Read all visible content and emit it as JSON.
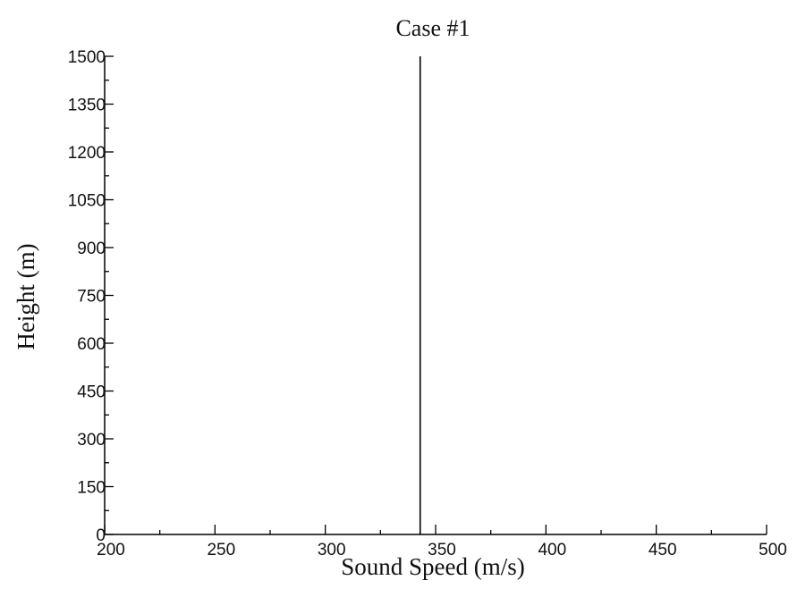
{
  "chart_data": {
    "type": "line",
    "title": "Case #1",
    "xlabel": "Sound Speed (m/s)",
    "ylabel": "Height (m)",
    "xlim": [
      200,
      500
    ],
    "ylim": [
      0,
      1500
    ],
    "x_ticks": [
      200,
      250,
      300,
      350,
      400,
      450,
      500
    ],
    "y_ticks": [
      0,
      150,
      300,
      450,
      600,
      750,
      900,
      1050,
      1200,
      1350,
      1500
    ],
    "x_minor_step": 25,
    "y_minor_step": 75,
    "grid": false,
    "series": [
      {
        "x": [
          343,
          343
        ],
        "y": [
          0,
          1500
        ]
      }
    ],
    "colors": {
      "line": "#000000",
      "axis": "#000000"
    }
  }
}
